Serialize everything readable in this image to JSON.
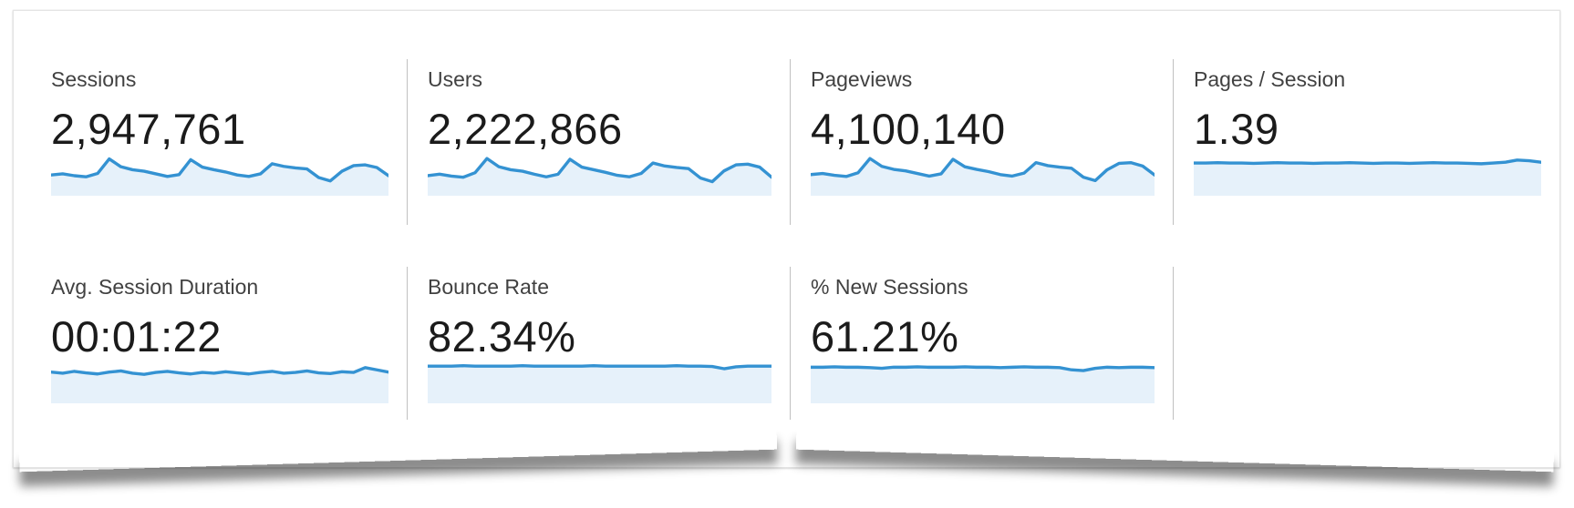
{
  "panel": {
    "description_label": "analytics-metrics-overview"
  },
  "colors": {
    "spark_line": "#3492d2",
    "spark_fill": "#e6f1fa",
    "divider": "#c0c0c0",
    "label_text": "#414141",
    "value_text": "#1b1b1b",
    "panel_bg": "#ffffff",
    "panel_border": "#e4e4e4"
  },
  "metrics": [
    {
      "id": "sessions",
      "label": "Sessions",
      "value": "2,947,761"
    },
    {
      "id": "users",
      "label": "Users",
      "value": "2,222,866"
    },
    {
      "id": "pageviews",
      "label": "Pageviews",
      "value": "4,100,140"
    },
    {
      "id": "pages-per-session",
      "label": "Pages / Session",
      "value": "1.39"
    },
    {
      "id": "avg-session-duration",
      "label": "Avg. Session Duration",
      "value": "00:01:22"
    },
    {
      "id": "bounce-rate",
      "label": "Bounce Rate",
      "value": "82.34%"
    },
    {
      "id": "pct-new-sessions",
      "label": "% New Sessions",
      "value": "61.21%"
    }
  ],
  "chart_data": [
    {
      "type": "area",
      "title": "Sessions",
      "headline_value": "2,947,761",
      "xlabel": "",
      "ylabel": "",
      "grid": false,
      "legend": false,
      "x_note": "30 unlabeled time points, values normalized 0-1 of sparkline height",
      "values": [
        0.52,
        0.55,
        0.5,
        0.47,
        0.56,
        0.95,
        0.74,
        0.66,
        0.62,
        0.55,
        0.48,
        0.53,
        0.93,
        0.73,
        0.66,
        0.6,
        0.52,
        0.48,
        0.55,
        0.82,
        0.75,
        0.71,
        0.68,
        0.45,
        0.36,
        0.62,
        0.77,
        0.79,
        0.72,
        0.5
      ]
    },
    {
      "type": "area",
      "title": "Users",
      "headline_value": "2,222,866",
      "xlabel": "",
      "ylabel": "",
      "grid": false,
      "legend": false,
      "x_note": "30 unlabeled time points, values normalized 0-1 of sparkline height",
      "values": [
        0.5,
        0.54,
        0.49,
        0.46,
        0.58,
        0.96,
        0.74,
        0.66,
        0.62,
        0.54,
        0.47,
        0.54,
        0.94,
        0.73,
        0.66,
        0.59,
        0.51,
        0.47,
        0.56,
        0.84,
        0.76,
        0.72,
        0.69,
        0.44,
        0.34,
        0.63,
        0.79,
        0.81,
        0.73,
        0.46
      ]
    },
    {
      "type": "area",
      "title": "Pageviews",
      "headline_value": "4,100,140",
      "xlabel": "",
      "ylabel": "",
      "grid": false,
      "legend": false,
      "x_note": "30 unlabeled time points, values normalized 0-1 of sparkline height",
      "values": [
        0.53,
        0.56,
        0.51,
        0.48,
        0.58,
        0.96,
        0.75,
        0.67,
        0.63,
        0.56,
        0.49,
        0.55,
        0.94,
        0.74,
        0.67,
        0.61,
        0.53,
        0.49,
        0.57,
        0.85,
        0.77,
        0.73,
        0.7,
        0.46,
        0.37,
        0.66,
        0.83,
        0.85,
        0.76,
        0.52
      ]
    },
    {
      "type": "area",
      "title": "Pages / Session",
      "headline_value": "1.39",
      "xlabel": "",
      "ylabel": "",
      "grid": false,
      "legend": false,
      "x_note": "30 unlabeled time points, values normalized 0-1 of sparkline height",
      "values": [
        0.84,
        0.84,
        0.85,
        0.84,
        0.84,
        0.83,
        0.84,
        0.85,
        0.84,
        0.84,
        0.83,
        0.84,
        0.84,
        0.85,
        0.84,
        0.83,
        0.84,
        0.84,
        0.83,
        0.84,
        0.85,
        0.84,
        0.84,
        0.83,
        0.82,
        0.84,
        0.86,
        0.92,
        0.9,
        0.86
      ]
    },
    {
      "type": "area",
      "title": "Avg. Session Duration",
      "headline_value": "00:01:22",
      "xlabel": "",
      "ylabel": "",
      "grid": false,
      "legend": false,
      "x_note": "30 unlabeled time points, values normalized 0-1 of sparkline height",
      "values": [
        0.8,
        0.77,
        0.82,
        0.78,
        0.75,
        0.8,
        0.83,
        0.77,
        0.74,
        0.79,
        0.82,
        0.78,
        0.75,
        0.79,
        0.77,
        0.81,
        0.78,
        0.75,
        0.79,
        0.82,
        0.77,
        0.79,
        0.83,
        0.78,
        0.76,
        0.81,
        0.79,
        0.92,
        0.86,
        0.8
      ]
    },
    {
      "type": "area",
      "title": "Bounce Rate",
      "headline_value": "82.34%",
      "xlabel": "",
      "ylabel": "",
      "grid": false,
      "legend": false,
      "x_note": "30 unlabeled time points, values normalized 0-1 of sparkline height",
      "values": [
        0.96,
        0.96,
        0.96,
        0.97,
        0.96,
        0.96,
        0.96,
        0.96,
        0.97,
        0.96,
        0.96,
        0.96,
        0.96,
        0.96,
        0.97,
        0.96,
        0.96,
        0.96,
        0.96,
        0.96,
        0.96,
        0.97,
        0.96,
        0.96,
        0.95,
        0.89,
        0.94,
        0.96,
        0.96,
        0.96
      ]
    },
    {
      "type": "area",
      "title": "% New Sessions",
      "headline_value": "61.21%",
      "xlabel": "",
      "ylabel": "",
      "grid": false,
      "legend": false,
      "x_note": "30 unlabeled time points, values normalized 0-1 of sparkline height",
      "values": [
        0.93,
        0.93,
        0.94,
        0.93,
        0.93,
        0.92,
        0.9,
        0.93,
        0.93,
        0.94,
        0.93,
        0.93,
        0.93,
        0.94,
        0.93,
        0.93,
        0.92,
        0.93,
        0.94,
        0.93,
        0.93,
        0.92,
        0.86,
        0.84,
        0.9,
        0.93,
        0.92,
        0.93,
        0.93,
        0.92
      ]
    }
  ]
}
